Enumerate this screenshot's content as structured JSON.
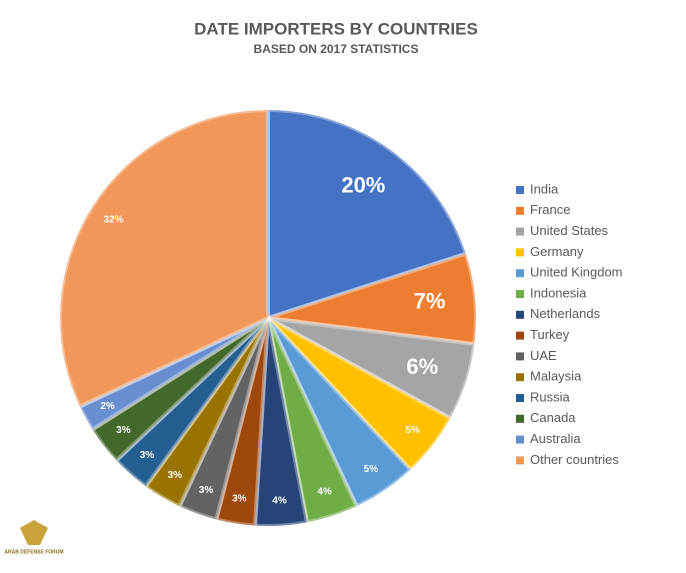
{
  "chart_data": {
    "type": "pie",
    "title": "DATE IMPORTERS BY COUNTRIES",
    "subtitle": "BASED ON 2017 STATISTICS",
    "categories": [
      "India",
      "France",
      "United States",
      "Germany",
      "United Kingdom",
      "Indonesia",
      "Netherlands",
      "Turkey",
      "UAE",
      "Malaysia",
      "Russia",
      "Canada",
      "Australia",
      "Other countries"
    ],
    "values": [
      20,
      7,
      6,
      5,
      5,
      4,
      4,
      3,
      3,
      3,
      3,
      3,
      2,
      32
    ],
    "value_labels": [
      "20%",
      "7%",
      "6%",
      "5%",
      "5%",
      "4%",
      "4%",
      "3%",
      "3%",
      "3%",
      "3%",
      "3%",
      "2%",
      "32%"
    ],
    "colors": [
      "#4472c4",
      "#ed7d31",
      "#a5a5a5",
      "#ffc000",
      "#5b9bd5",
      "#70ad47",
      "#264478",
      "#9e480e",
      "#636363",
      "#997300",
      "#255e91",
      "#43682b",
      "#698ed0",
      "#f1975a"
    ],
    "legend": "right",
    "watermark": "ARAB DEFENSE FORUM"
  }
}
